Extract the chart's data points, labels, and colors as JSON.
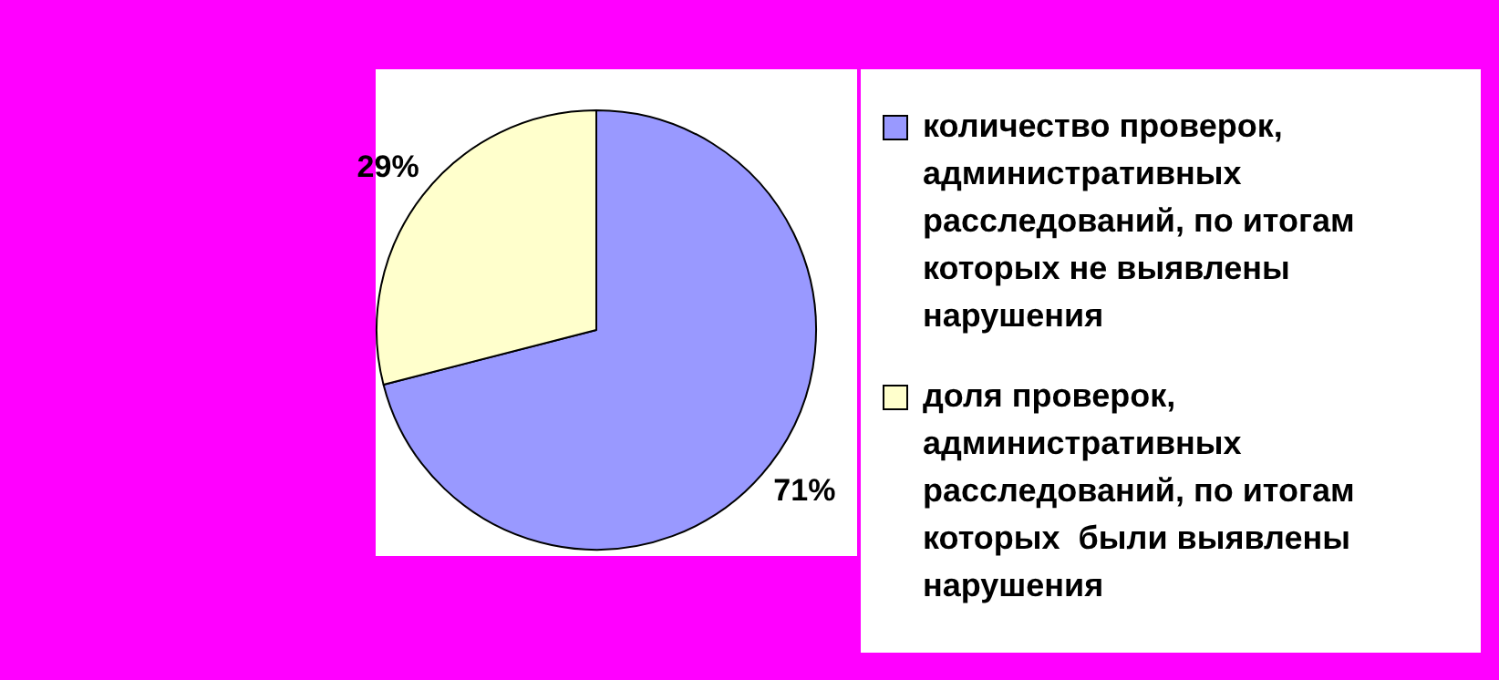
{
  "chart_data": {
    "type": "pie",
    "categories": [
      "количество проверок, административных расследований, по итогам которых не выявлены нарушения",
      "доля проверок, административных расследований, по итогам которых  были выявлены нарушения"
    ],
    "values": [
      71,
      29
    ],
    "colors": [
      "#9999ff",
      "#ffffcc"
    ],
    "value_labels": [
      "71%",
      "29%"
    ],
    "legend": "right"
  }
}
